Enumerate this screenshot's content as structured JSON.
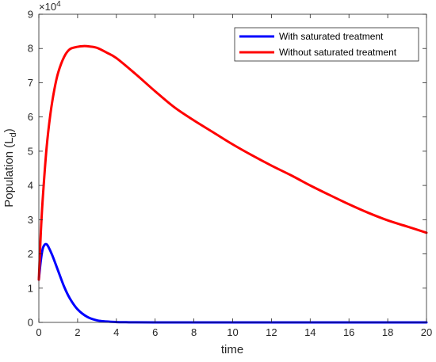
{
  "chart_data": {
    "type": "line",
    "xlabel": "time",
    "ylabel_main": "Population (L",
    "ylabel_sub": "d",
    "ylabel_close": ")",
    "exponent_base": "×10",
    "exponent_power": "4",
    "xlim": [
      0,
      20
    ],
    "ylim": [
      0,
      9
    ],
    "y_scale_factor": 10000,
    "xticks": [
      0,
      2,
      4,
      6,
      8,
      10,
      12,
      14,
      16,
      18,
      20
    ],
    "yticks": [
      0,
      1,
      2,
      3,
      4,
      5,
      6,
      7,
      8,
      9
    ],
    "grid": false,
    "legend_position": "top-right",
    "series": [
      {
        "name": "With saturated treatment",
        "color": "#0000ff",
        "x": [
          0,
          0.1,
          0.2,
          0.3,
          0.4,
          0.5,
          0.7,
          1.0,
          1.3,
          1.6,
          2.0,
          2.5,
          3.0,
          3.5,
          4.0,
          4.5,
          5.0,
          6.0,
          8.0,
          10,
          12,
          14,
          16,
          18,
          20
        ],
        "y": [
          1.25,
          1.8,
          2.15,
          2.27,
          2.28,
          2.2,
          1.95,
          1.5,
          1.05,
          0.7,
          0.38,
          0.16,
          0.06,
          0.025,
          0.01,
          0.005,
          0.002,
          0.0,
          0.0,
          0.0,
          0.0,
          0.0,
          0.0,
          0.0,
          0.0
        ]
      },
      {
        "name": "Without saturated treatment",
        "color": "#ff0000",
        "x": [
          0,
          0.1,
          0.2,
          0.4,
          0.6,
          0.8,
          1.0,
          1.3,
          1.6,
          2.0,
          2.3,
          2.6,
          3.0,
          3.5,
          4.0,
          5.0,
          6.0,
          7.0,
          8.0,
          9.0,
          10,
          11,
          12,
          13,
          14,
          15,
          16,
          17,
          18,
          19,
          20
        ],
        "y": [
          1.25,
          2.6,
          3.6,
          5.1,
          6.1,
          6.8,
          7.3,
          7.75,
          7.98,
          8.05,
          8.07,
          8.06,
          8.02,
          7.88,
          7.72,
          7.25,
          6.75,
          6.28,
          5.9,
          5.55,
          5.2,
          4.88,
          4.58,
          4.3,
          4.0,
          3.72,
          3.45,
          3.2,
          2.98,
          2.8,
          2.62
        ]
      }
    ]
  }
}
